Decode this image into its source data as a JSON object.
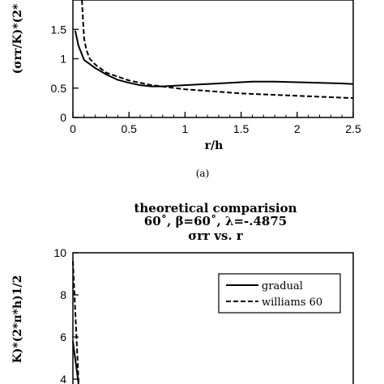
{
  "chart_data": [
    {
      "type": "line",
      "title": "",
      "xlabel": "r/h",
      "ylabel": "(σrr/K)*(2*",
      "xlim": [
        0,
        2.5
      ],
      "ylim": [
        0,
        2
      ],
      "xticks": [
        "0",
        "0.5",
        "1",
        "1.5",
        "2",
        "2.5"
      ],
      "yticks": [
        "0",
        "0.5",
        "1",
        "1.5"
      ],
      "grid": false,
      "series": [
        {
          "name": "",
          "style": "solid",
          "x": [
            0.02,
            0.05,
            0.1,
            0.2,
            0.3,
            0.4,
            0.5,
            0.6,
            0.7,
            0.8,
            1.0,
            1.2,
            1.4,
            1.6,
            1.8,
            2.0,
            2.2,
            2.4,
            2.5
          ],
          "y": [
            1.48,
            1.22,
            0.98,
            0.84,
            0.73,
            0.64,
            0.59,
            0.55,
            0.53,
            0.53,
            0.55,
            0.57,
            0.59,
            0.61,
            0.61,
            0.6,
            0.59,
            0.58,
            0.57
          ]
        },
        {
          "name": "",
          "style": "dashed",
          "x": [
            0.08,
            0.09,
            0.1,
            0.12,
            0.15,
            0.2,
            0.3,
            0.5,
            0.7,
            1.0,
            1.5,
            2.0,
            2.5
          ],
          "y": [
            2.0,
            1.65,
            1.35,
            1.15,
            1.0,
            0.9,
            0.76,
            0.63,
            0.55,
            0.48,
            0.41,
            0.37,
            0.33
          ]
        }
      ],
      "caption": "(a)"
    },
    {
      "type": "line",
      "title": "theoretical  comparision",
      "subtitle": "60˚,  β=60˚,  λ=-.4875",
      "subtitle2": "σrr vs. r",
      "xlabel": "",
      "ylabel": "K)*(2*π*h)1/2",
      "ylim": [
        3.7,
        10
      ],
      "yticks": [
        "4",
        "6",
        "8",
        "10"
      ],
      "grid": false,
      "legend_position": "top-right",
      "series": [
        {
          "name": "gradual",
          "style": "solid",
          "x": [
            0.0,
            0.012
          ],
          "y": [
            5.8,
            3.7
          ]
        },
        {
          "name": "williams 60",
          "style": "dashed",
          "x": [
            0.0,
            0.012
          ],
          "y": [
            9.6,
            3.7
          ]
        }
      ]
    }
  ]
}
